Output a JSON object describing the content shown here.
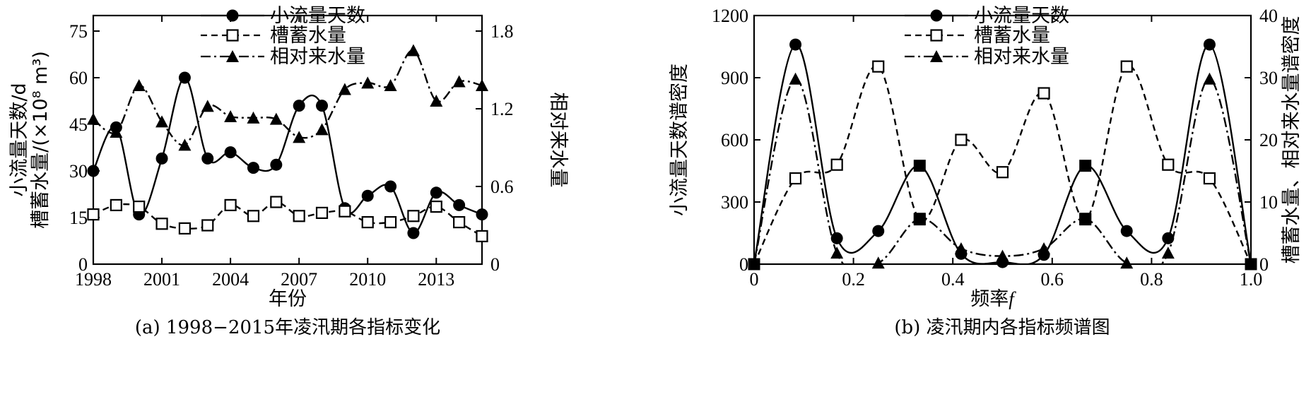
{
  "chart_data": [
    {
      "type": "line",
      "caption": "(a) 1998−2015年凌汛期各指标变化",
      "xlabel": "年份",
      "ylabel_left_line1": "小流量天数/d",
      "ylabel_left_line2": "槽蓄水量/(×10⁸ m³)",
      "ylabel_right": "相对来水量",
      "xlim": [
        1998,
        2015
      ],
      "ylim_left": [
        0,
        80
      ],
      "ylim_right": [
        0,
        1.92
      ],
      "x_ticks": [
        "1998",
        "2001",
        "2004",
        "2007",
        "2010",
        "2013"
      ],
      "y_ticks_left": [
        "0",
        "15",
        "30",
        "45",
        "60",
        "75"
      ],
      "y_ticks_right": [
        "0",
        "0.6",
        "1.2",
        "1.8"
      ],
      "x": [
        1998,
        1999,
        2000,
        2001,
        2002,
        2003,
        2004,
        2005,
        2006,
        2007,
        2008,
        2009,
        2010,
        2011,
        2012,
        2013,
        2014,
        2015
      ],
      "series": [
        {
          "name": "小流量天数",
          "axis": "left",
          "style": "solid",
          "marker": "filled-circle",
          "values": [
            30,
            44,
            16,
            34,
            60,
            34,
            36,
            31,
            32,
            51,
            51,
            18,
            22,
            25,
            10,
            23,
            19,
            16
          ]
        },
        {
          "name": "槽蓄水量",
          "axis": "left",
          "style": "dashed",
          "marker": "open-square",
          "values": [
            16,
            19,
            18.5,
            13,
            11.5,
            12.5,
            19,
            15.5,
            20,
            15.5,
            16.5,
            17,
            13.5,
            13.5,
            15.5,
            18.5,
            13.5,
            9
          ]
        },
        {
          "name": "相对来水量",
          "axis": "right",
          "style": "dash-dot",
          "marker": "filled-triangle",
          "values": [
            1.12,
            1.02,
            1.38,
            1.1,
            0.92,
            1.22,
            1.14,
            1.13,
            1.12,
            0.98,
            1.04,
            1.35,
            1.4,
            1.38,
            1.65,
            1.26,
            1.41,
            1.38
          ]
        }
      ]
    },
    {
      "type": "line",
      "caption": "(b) 凌汛期内各指标频谱图",
      "xlabel": "频率",
      "xlabel_symbol": "f",
      "ylabel_left": "小流量天数谱密度",
      "ylabel_right": "槽蓄水量、相对来水量谱密度",
      "xlim": [
        0,
        1
      ],
      "ylim_left": [
        0,
        1200
      ],
      "ylim_right": [
        0,
        40
      ],
      "x_ticks": [
        "0",
        "0.2",
        "0.4",
        "0.6",
        "0.8",
        "1.0"
      ],
      "y_ticks_left": [
        "0",
        "300",
        "600",
        "900",
        "1200"
      ],
      "y_ticks_right": [
        "0",
        "10",
        "20",
        "30",
        "40"
      ],
      "x": [
        0,
        0.0833,
        0.1667,
        0.25,
        0.3333,
        0.4167,
        0.5,
        0.5833,
        0.6667,
        0.75,
        0.8333,
        0.9167,
        1.0
      ],
      "series": [
        {
          "name": "小流量天数",
          "axis": "left",
          "style": "solid",
          "marker": "filled-circle",
          "values": [
            0,
            1060,
            125,
            160,
            475,
            50,
            10,
            45,
            475,
            160,
            125,
            1060,
            0
          ]
        },
        {
          "name": "槽蓄水量",
          "axis": "right",
          "style": "dashed",
          "marker": "open-square",
          "values": [
            0,
            13.8,
            16,
            31.8,
            7.2,
            20,
            14.8,
            27.5,
            7.2,
            31.8,
            16,
            13.8,
            0
          ]
        },
        {
          "name": "相对来水量",
          "axis": "right",
          "style": "dash-dot",
          "marker": "filled-triangle",
          "values": [
            0,
            29.8,
            1.8,
            0.2,
            7.3,
            2.5,
            1.3,
            2.5,
            7.3,
            0.2,
            1.8,
            29.8,
            0
          ]
        }
      ],
      "note": "Marker styles at x=0, 1/3, 2/3, 1 overlap as filled squares in the original."
    }
  ]
}
